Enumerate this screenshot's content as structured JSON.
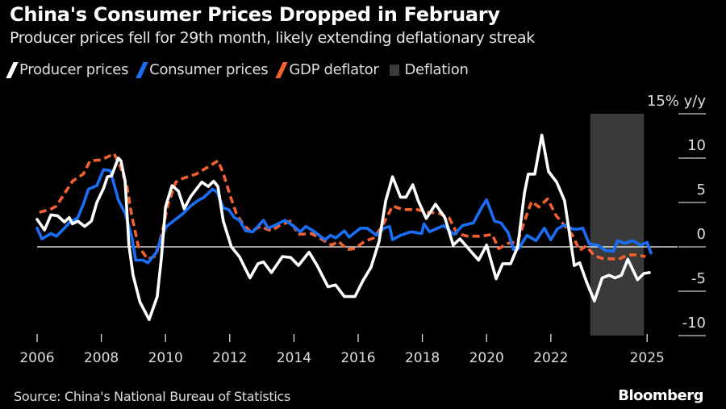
{
  "header": {
    "title": "China's Consumer Prices Dropped in February",
    "subtitle": "Producer prices fell for 29th month, likely extending deflationary streak"
  },
  "footer": {
    "source": "Source: China's National Bureau of Statistics",
    "brand": "Bloomberg"
  },
  "chart_data": {
    "type": "line",
    "title": "China's Consumer Prices Dropped in February",
    "ylabel": "% y/y",
    "y_unit_label": "y/y",
    "ylim": [
      -10,
      15
    ],
    "xlim": [
      2006,
      2025.2
    ],
    "x_ticks": [
      2006,
      2008,
      2010,
      2012,
      2014,
      2016,
      2018,
      2020,
      2022,
      2025
    ],
    "x_tick_labels": [
      "2006",
      "2008",
      "2010",
      "2012",
      "2014",
      "2016",
      "2018",
      "2020",
      "2022",
      "2025"
    ],
    "y_ticks": [
      15,
      10,
      5,
      0,
      -5,
      -10
    ],
    "y_tick_labels": [
      "15%",
      "10",
      "5",
      "0",
      "-5",
      "-10"
    ],
    "legend_position": "top-left",
    "legend": [
      {
        "label": "Producer prices",
        "color": "#ffffff",
        "style": "solid"
      },
      {
        "label": "Consumer prices",
        "color": "#1a6ef5",
        "style": "solid"
      },
      {
        "label": "GDP deflator",
        "color": "#f26030",
        "style": "dashed"
      },
      {
        "label": "Deflation",
        "color": "#3a3a3a",
        "style": "band"
      }
    ],
    "bands": [
      {
        "name": "Deflation",
        "from": 2023.23,
        "to": 2024.9
      }
    ],
    "series": [
      {
        "name": "GDP deflator",
        "color": "#f26030",
        "dashed": true,
        "points": [
          [
            2006.07,
            3.9
          ],
          [
            2006.4,
            4.2
          ],
          [
            2006.6,
            4.6
          ],
          [
            2007.1,
            7.4
          ],
          [
            2007.44,
            8.2
          ],
          [
            2007.65,
            9.7
          ],
          [
            2008.0,
            9.8
          ],
          [
            2008.4,
            10.5
          ],
          [
            2008.6,
            9.0
          ],
          [
            2008.8,
            6.8
          ],
          [
            2008.95,
            3.5
          ],
          [
            2009.15,
            0.1
          ],
          [
            2009.45,
            -1.4
          ],
          [
            2009.7,
            -1.0
          ],
          [
            2009.9,
            1.7
          ],
          [
            2010.07,
            4.7
          ],
          [
            2010.32,
            7.3
          ],
          [
            2010.53,
            7.7
          ],
          [
            2010.95,
            8.2
          ],
          [
            2011.37,
            9.1
          ],
          [
            2011.63,
            9.7
          ],
          [
            2011.8,
            8.3
          ],
          [
            2012.0,
            5.9
          ],
          [
            2012.2,
            3.8
          ],
          [
            2012.4,
            2.6
          ],
          [
            2012.65,
            1.7
          ],
          [
            2012.95,
            2.3
          ],
          [
            2013.3,
            1.8
          ],
          [
            2013.55,
            2.4
          ],
          [
            2013.9,
            2.9
          ],
          [
            2014.14,
            1.4
          ],
          [
            2014.55,
            1.5
          ],
          [
            2014.89,
            0.8
          ],
          [
            2015.17,
            0.2
          ],
          [
            2015.4,
            0.6
          ],
          [
            2015.65,
            -0.3
          ],
          [
            2015.9,
            -0.2
          ],
          [
            2016.19,
            0.6
          ],
          [
            2016.48,
            1.0
          ],
          [
            2016.73,
            2.2
          ],
          [
            2017.07,
            4.6
          ],
          [
            2017.4,
            4.2
          ],
          [
            2017.82,
            4.2
          ],
          [
            2018.16,
            3.9
          ],
          [
            2018.5,
            3.8
          ],
          [
            2018.83,
            3.3
          ],
          [
            2019.08,
            1.5
          ],
          [
            2019.41,
            1.2
          ],
          [
            2019.84,
            1.2
          ],
          [
            2020.17,
            1.4
          ],
          [
            2020.38,
            -0.2
          ],
          [
            2020.67,
            0.4
          ],
          [
            2020.97,
            0.6
          ],
          [
            2021.18,
            2.9
          ],
          [
            2021.4,
            5.1
          ],
          [
            2021.63,
            4.5
          ],
          [
            2021.9,
            5.4
          ],
          [
            2022.17,
            3.5
          ],
          [
            2022.43,
            2.4
          ],
          [
            2022.66,
            1.4
          ],
          [
            2022.9,
            -0.4
          ],
          [
            2023.1,
            0.1
          ],
          [
            2023.36,
            -1.0
          ],
          [
            2023.6,
            -1.3
          ],
          [
            2024.11,
            -1.4
          ],
          [
            2024.4,
            -0.9
          ],
          [
            2024.7,
            -0.9
          ],
          [
            2024.95,
            -1.1
          ]
        ]
      },
      {
        "name": "Consumer prices",
        "color": "#1a6ef5",
        "dashed": false,
        "points": [
          [
            2006.0,
            2.1
          ],
          [
            2006.15,
            0.9
          ],
          [
            2006.43,
            1.5
          ],
          [
            2006.6,
            1.2
          ],
          [
            2006.85,
            2.1
          ],
          [
            2007.0,
            2.7
          ],
          [
            2007.27,
            3.3
          ],
          [
            2007.44,
            4.8
          ],
          [
            2007.6,
            6.5
          ],
          [
            2007.86,
            6.9
          ],
          [
            2008.07,
            8.7
          ],
          [
            2008.28,
            8.6
          ],
          [
            2008.53,
            5.3
          ],
          [
            2008.74,
            3.8
          ],
          [
            2008.95,
            1.1
          ],
          [
            2009.07,
            -1.5
          ],
          [
            2009.3,
            -1.5
          ],
          [
            2009.45,
            -1.8
          ],
          [
            2009.7,
            -0.7
          ],
          [
            2009.9,
            1.3
          ],
          [
            2010.03,
            2.3
          ],
          [
            2010.28,
            3.0
          ],
          [
            2010.53,
            3.7
          ],
          [
            2010.78,
            4.6
          ],
          [
            2011.0,
            5.2
          ],
          [
            2011.2,
            5.6
          ],
          [
            2011.46,
            6.5
          ],
          [
            2011.6,
            6.2
          ],
          [
            2011.8,
            4.4
          ],
          [
            2011.97,
            4.2
          ],
          [
            2012.14,
            3.3
          ],
          [
            2012.3,
            3.0
          ],
          [
            2012.5,
            1.8
          ],
          [
            2012.72,
            1.7
          ],
          [
            2013.05,
            3.0
          ],
          [
            2013.2,
            2.1
          ],
          [
            2013.39,
            2.4
          ],
          [
            2013.72,
            3.0
          ],
          [
            2014.0,
            2.3
          ],
          [
            2014.2,
            1.7
          ],
          [
            2014.37,
            2.3
          ],
          [
            2014.6,
            1.8
          ],
          [
            2014.97,
            0.8
          ],
          [
            2015.14,
            1.3
          ],
          [
            2015.3,
            1.0
          ],
          [
            2015.57,
            1.8
          ],
          [
            2015.72,
            1.1
          ],
          [
            2016.07,
            2.1
          ],
          [
            2016.28,
            2.1
          ],
          [
            2016.57,
            1.3
          ],
          [
            2016.8,
            2.1
          ],
          [
            2016.98,
            2.3
          ],
          [
            2017.07,
            0.8
          ],
          [
            2017.32,
            1.3
          ],
          [
            2017.65,
            1.7
          ],
          [
            2017.98,
            1.5
          ],
          [
            2018.05,
            2.6
          ],
          [
            2018.22,
            1.7
          ],
          [
            2018.66,
            2.4
          ],
          [
            2019.0,
            1.4
          ],
          [
            2019.25,
            2.4
          ],
          [
            2019.59,
            2.7
          ],
          [
            2019.84,
            4.4
          ],
          [
            2020.0,
            5.3
          ],
          [
            2020.25,
            2.9
          ],
          [
            2020.45,
            2.7
          ],
          [
            2020.67,
            1.6
          ],
          [
            2020.84,
            -0.3
          ],
          [
            2021.0,
            -0.2
          ],
          [
            2021.26,
            1.3
          ],
          [
            2021.54,
            0.7
          ],
          [
            2021.8,
            2.1
          ],
          [
            2022.0,
            0.8
          ],
          [
            2022.2,
            2.0
          ],
          [
            2022.43,
            2.5
          ],
          [
            2022.68,
            2.0
          ],
          [
            2022.85,
            2.0
          ],
          [
            2023.0,
            2.1
          ],
          [
            2023.2,
            0.3
          ],
          [
            2023.46,
            0.2
          ],
          [
            2023.7,
            -0.4
          ],
          [
            2023.95,
            -0.5
          ],
          [
            2024.08,
            0.7
          ],
          [
            2024.3,
            0.4
          ],
          [
            2024.55,
            0.7
          ],
          [
            2024.8,
            0.2
          ],
          [
            2025.0,
            0.5
          ],
          [
            2025.12,
            -0.7
          ]
        ]
      },
      {
        "name": "Producer prices",
        "color": "#ffffff",
        "dashed": false,
        "points": [
          [
            2006.0,
            3.1
          ],
          [
            2006.23,
            1.9
          ],
          [
            2006.43,
            3.6
          ],
          [
            2006.64,
            3.5
          ],
          [
            2006.85,
            2.8
          ],
          [
            2007.0,
            3.3
          ],
          [
            2007.1,
            2.6
          ],
          [
            2007.27,
            2.9
          ],
          [
            2007.48,
            2.3
          ],
          [
            2007.69,
            2.9
          ],
          [
            2007.86,
            5.0
          ],
          [
            2008.07,
            6.6
          ],
          [
            2008.19,
            7.9
          ],
          [
            2008.32,
            8.0
          ],
          [
            2008.53,
            10.0
          ],
          [
            2008.61,
            9.7
          ],
          [
            2008.74,
            7.4
          ],
          [
            2008.86,
            0.2
          ],
          [
            2008.99,
            -3.2
          ],
          [
            2009.2,
            -6.2
          ],
          [
            2009.49,
            -8.2
          ],
          [
            2009.74,
            -5.6
          ],
          [
            2009.87,
            -1.3
          ],
          [
            2010.0,
            4.5
          ],
          [
            2010.2,
            6.9
          ],
          [
            2010.4,
            6.3
          ],
          [
            2010.58,
            4.3
          ],
          [
            2010.79,
            5.7
          ],
          [
            2011.13,
            7.3
          ],
          [
            2011.33,
            6.8
          ],
          [
            2011.5,
            7.4
          ],
          [
            2011.63,
            6.8
          ],
          [
            2011.8,
            2.9
          ],
          [
            2012.05,
            0.0
          ],
          [
            2012.3,
            -1.1
          ],
          [
            2012.63,
            -3.5
          ],
          [
            2012.88,
            -1.9
          ],
          [
            2013.05,
            -1.7
          ],
          [
            2013.3,
            -2.9
          ],
          [
            2013.64,
            -1.1
          ],
          [
            2013.9,
            -1.2
          ],
          [
            2014.14,
            -2.1
          ],
          [
            2014.47,
            -0.6
          ],
          [
            2014.72,
            -2.1
          ],
          [
            2015.06,
            -4.5
          ],
          [
            2015.3,
            -4.3
          ],
          [
            2015.57,
            -5.6
          ],
          [
            2015.9,
            -5.6
          ],
          [
            2016.15,
            -3.8
          ],
          [
            2016.4,
            -2.3
          ],
          [
            2016.65,
            0.6
          ],
          [
            2016.86,
            5.2
          ],
          [
            2017.07,
            7.9
          ],
          [
            2017.32,
            5.6
          ],
          [
            2017.49,
            5.6
          ],
          [
            2017.7,
            7.0
          ],
          [
            2017.87,
            5.2
          ],
          [
            2018.12,
            3.2
          ],
          [
            2018.41,
            4.8
          ],
          [
            2018.7,
            3.3
          ],
          [
            2018.96,
            0.2
          ],
          [
            2019.17,
            0.9
          ],
          [
            2019.46,
            -0.3
          ],
          [
            2019.75,
            -1.5
          ],
          [
            2020.0,
            0.2
          ],
          [
            2020.3,
            -3.6
          ],
          [
            2020.5,
            -1.9
          ],
          [
            2020.75,
            -1.9
          ],
          [
            2020.97,
            0.0
          ],
          [
            2021.18,
            6.1
          ],
          [
            2021.3,
            8.2
          ],
          [
            2021.5,
            8.2
          ],
          [
            2021.72,
            12.6
          ],
          [
            2021.93,
            8.5
          ],
          [
            2022.18,
            7.3
          ],
          [
            2022.43,
            5.2
          ],
          [
            2022.73,
            -2.1
          ],
          [
            2022.9,
            -1.8
          ],
          [
            2023.14,
            -4.2
          ],
          [
            2023.36,
            -6.1
          ],
          [
            2023.6,
            -3.5
          ],
          [
            2023.82,
            -3.2
          ],
          [
            2024.0,
            -3.5
          ],
          [
            2024.2,
            -3.2
          ],
          [
            2024.4,
            -1.4
          ],
          [
            2024.7,
            -3.7
          ],
          [
            2024.9,
            -3.0
          ],
          [
            2025.07,
            -2.9
          ]
        ]
      }
    ]
  }
}
